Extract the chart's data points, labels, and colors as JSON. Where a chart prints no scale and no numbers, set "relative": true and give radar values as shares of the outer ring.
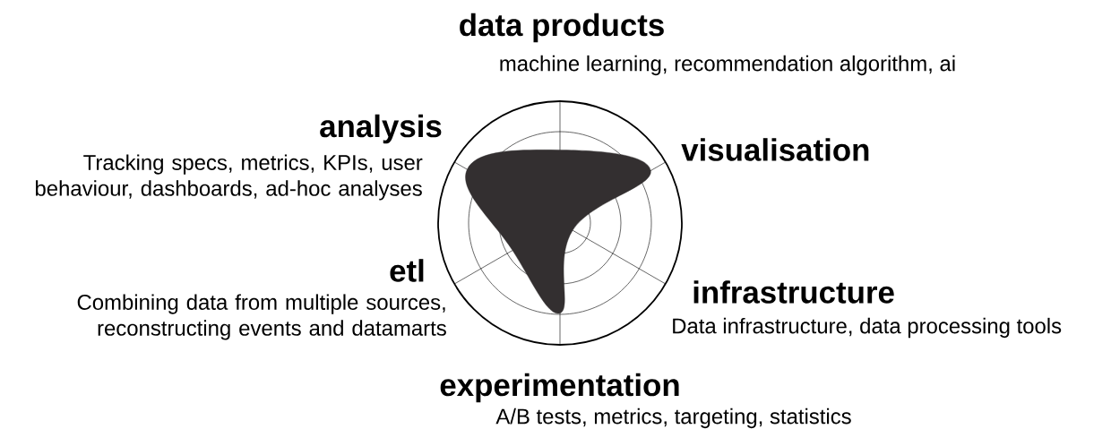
{
  "chart_data": {
    "type": "radar",
    "relative": true,
    "grid": true,
    "categories": [
      "data products",
      "visualisation",
      "infrastructure",
      "experimentation",
      "etl",
      "analysis"
    ],
    "series": [
      {
        "color": "#332f30",
        "values": [
          0.6,
          0.86,
          0.12,
          0.74,
          0.45,
          0.88
        ]
      }
    ],
    "annotations": [
      {
        "text": "machine learning, recommendation algorithm, ai",
        "x": "data products"
      },
      {
        "text": "Data infrastructure, data processing tools",
        "x": "infrastructure"
      },
      {
        "text": "A/B tests, metrics, targeting, statistics",
        "x": "experimentation"
      },
      {
        "text": "Combining data from multiple sources, reconstructing events and datamarts",
        "x": "etl"
      },
      {
        "text": "Tracking specs, metrics, KPIs, user behaviour, dashboards, ad-hoc analyses",
        "x": "analysis"
      }
    ]
  }
}
